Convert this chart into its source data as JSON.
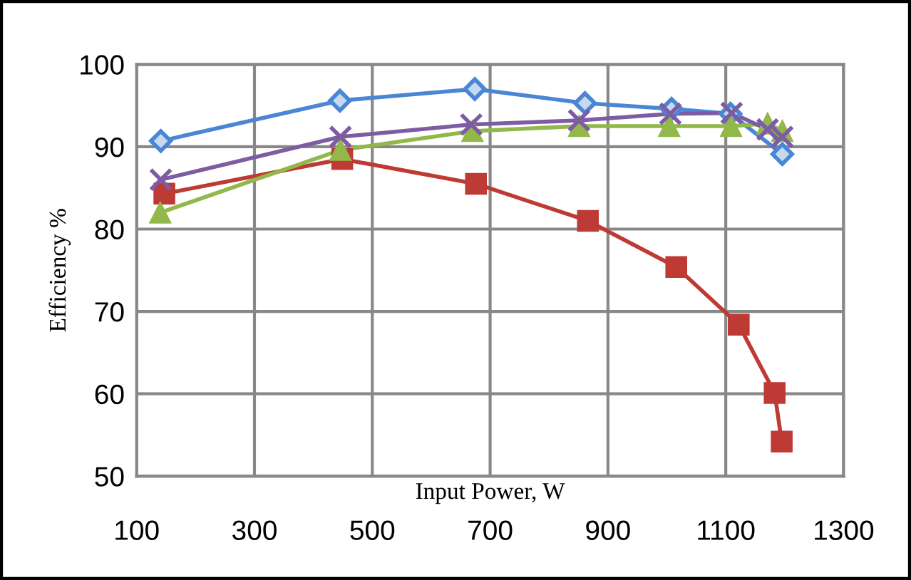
{
  "chart_data": {
    "type": "line",
    "xlabel": "Input Power, W",
    "ylabel": "Efficiency %",
    "xlim": [
      100,
      1300
    ],
    "xticks": [
      100,
      300,
      500,
      700,
      900,
      1100,
      1300
    ],
    "ylim": [
      50,
      100
    ],
    "yticks": [
      50,
      60,
      70,
      80,
      90,
      100
    ],
    "grid": true,
    "line_style": "solid",
    "series": [
      {
        "color": "#4a86d4",
        "marker": "diamond",
        "x": [
          141,
          445,
          674,
          861,
          1008,
          1108,
          1196
        ],
        "values": [
          90.7,
          95.6,
          97.0,
          95.3,
          94.6,
          94.0,
          89.1
        ]
      },
      {
        "color": "#be3a35",
        "marker": "square",
        "x": [
          147,
          449,
          676,
          866,
          1016,
          1122,
          1183,
          1195
        ],
        "values": [
          84.3,
          88.5,
          85.5,
          81.0,
          75.4,
          68.4,
          60.1,
          54.2
        ]
      },
      {
        "color": "#92b84b",
        "marker": "triangle",
        "x": [
          140,
          446,
          670,
          851,
          1004,
          1109,
          1171,
          1196
        ],
        "values": [
          82.0,
          89.6,
          91.9,
          92.5,
          92.5,
          92.5,
          92.8,
          91.9
        ]
      },
      {
        "color": "#7d5ca3",
        "marker": "cross",
        "x": [
          141,
          446,
          668,
          851,
          1006,
          1110,
          1171,
          1196
        ],
        "values": [
          86.0,
          91.2,
          92.7,
          93.2,
          94.0,
          94.1,
          92.1,
          91.2
        ]
      }
    ]
  }
}
